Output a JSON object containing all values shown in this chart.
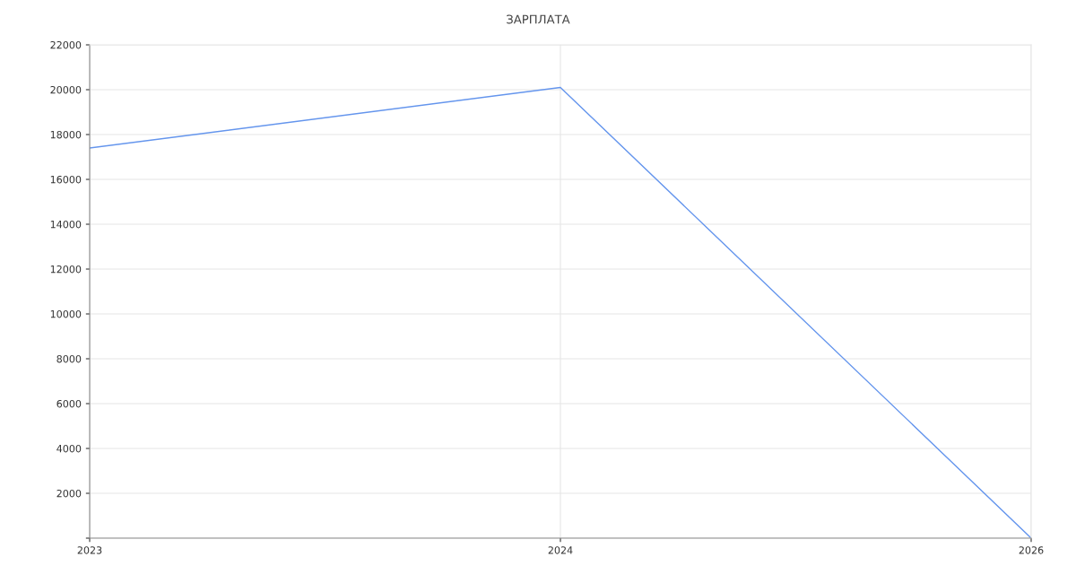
{
  "chart_data": {
    "type": "line",
    "title": "ЗАРПЛАТА",
    "categories": [
      "2023",
      "2024",
      "2026"
    ],
    "series": [
      {
        "color": "#6495ed",
        "values": [
          17400,
          20100,
          0
        ]
      }
    ],
    "ylim": [
      0,
      22000
    ],
    "yticks": [
      {
        "value": 0,
        "label": null
      },
      2000,
      4000,
      6000,
      8000,
      10000,
      12000,
      14000,
      16000,
      18000,
      20000,
      22000
    ],
    "grid": true,
    "marker": "none",
    "line_style": "solid",
    "legend": false
  }
}
